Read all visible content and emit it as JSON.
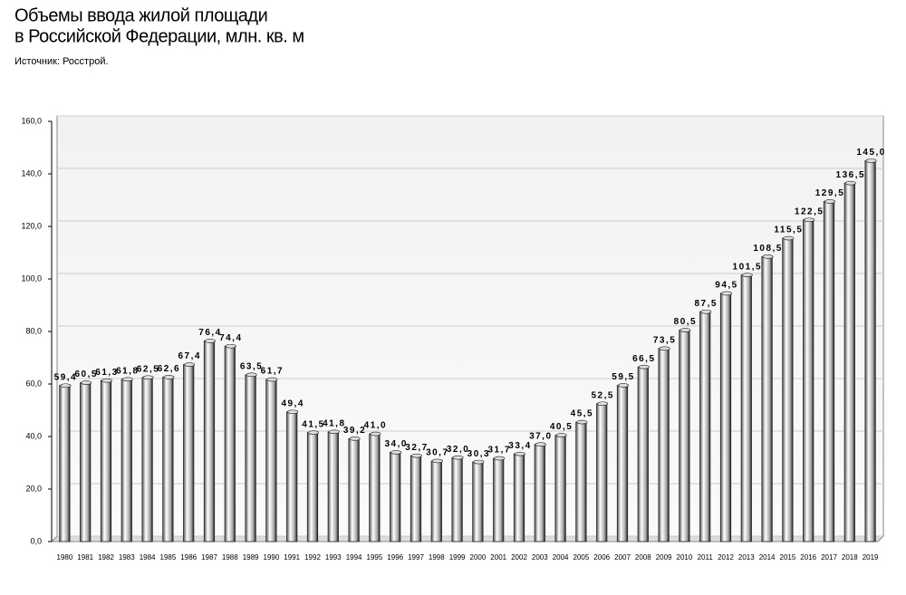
{
  "chart_data": {
    "type": "bar",
    "title": [
      "Объемы ввода жилой площади",
      "в Российской Федерации, млн. кв. м"
    ],
    "source": "Источник: Росстрой.",
    "categories": [
      "1980",
      "1981",
      "1982",
      "1983",
      "1984",
      "1985",
      "1986",
      "1987",
      "1988",
      "1989",
      "1990",
      "1991",
      "1992",
      "1993",
      "1994",
      "1995",
      "1996",
      "1997",
      "1998",
      "1999",
      "2000",
      "2001",
      "2002",
      "2003",
      "2004",
      "2005",
      "2006",
      "2007",
      "2008",
      "2009",
      "2010",
      "2011",
      "2012",
      "2013",
      "2014",
      "2015",
      "2016",
      "2017",
      "2018",
      "2019"
    ],
    "values": [
      59.4,
      60.5,
      61.3,
      61.8,
      62.5,
      62.6,
      67.4,
      76.4,
      74.4,
      63.5,
      61.7,
      49.4,
      41.5,
      41.8,
      39.2,
      41.0,
      34.0,
      32.7,
      30.7,
      32.0,
      30.3,
      31.7,
      33.4,
      37.0,
      40.5,
      45.5,
      52.5,
      59.5,
      66.5,
      73.5,
      80.5,
      87.5,
      94.5,
      101.5,
      108.5,
      115.5,
      122.5,
      129.5,
      136.5,
      145.0
    ],
    "value_labels": [
      "59,4",
      "60,5",
      "61,3",
      "61,8",
      "62,5",
      "62,6",
      "67,4",
      "76,4",
      "74,4",
      "63,5",
      "61,7",
      "49,4",
      "41,5",
      "41,8",
      "39,2",
      "41,0",
      "34,0",
      "32,7",
      "30,7",
      "32,0",
      "30,3",
      "31,7",
      "33,4",
      "37,0",
      "40,5",
      "45,5",
      "52,5",
      "59,5",
      "66,5",
      "73,5",
      "80,5",
      "87,5",
      "94,5",
      "101,5",
      "108,5",
      "115,5",
      "122,5",
      "129,5",
      "136,5",
      "145,0"
    ],
    "color": "#9a9a9a",
    "ylim": [
      0,
      160
    ],
    "yticks": [
      {
        "value": 0,
        "label": "0,0"
      },
      {
        "value": 20,
        "label": "20,0"
      },
      {
        "value": 40,
        "label": "40,0"
      },
      {
        "value": 60,
        "label": "60,0"
      },
      {
        "value": 80,
        "label": "80,0"
      },
      {
        "value": 100,
        "label": "100,0"
      },
      {
        "value": 120,
        "label": "120,0"
      },
      {
        "value": 140,
        "label": "140,0"
      },
      {
        "value": 160,
        "label": "160,0"
      }
    ],
    "grid": true
  }
}
